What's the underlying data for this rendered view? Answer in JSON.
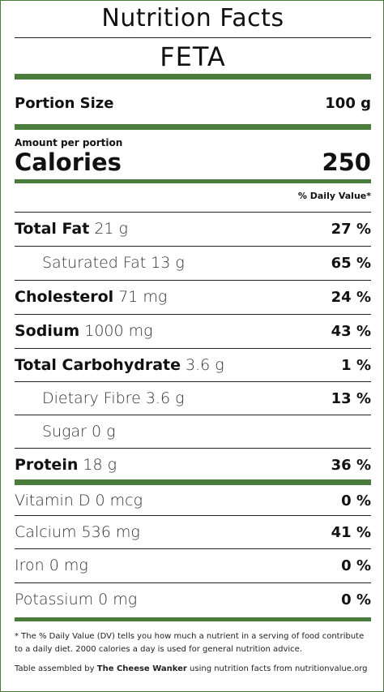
{
  "title": "Nutrition Facts",
  "food_name": "FETA",
  "portion": {
    "label": "Portion Size",
    "value": "100 g"
  },
  "amount_per_portion": "Amount per portion",
  "calories": {
    "label": "Calories",
    "value": "250"
  },
  "daily_value_header": "% Daily Value*",
  "nutrients": [
    {
      "name": "Total Fat",
      "amount": "21 g",
      "dv": "27 %"
    },
    {
      "name": "Saturated Fat",
      "amount": "13 g",
      "dv": "65 %"
    },
    {
      "name": "Cholesterol",
      "amount": "71 mg",
      "dv": "24 %"
    },
    {
      "name": "Sodium",
      "amount": "1000 mg",
      "dv": "43 %"
    },
    {
      "name": "Total Carbohydrate",
      "amount": "3.6 g",
      "dv": "1 %"
    },
    {
      "name": "Dietary Fibre",
      "amount": "3.6 g",
      "dv": "13 %"
    },
    {
      "name": "Sugar",
      "amount": "0 g",
      "dv": ""
    },
    {
      "name": "Protein",
      "amount": "18 g",
      "dv": "36 %"
    }
  ],
  "vitamins": [
    {
      "name": "Vitamin D",
      "amount": "0 mcg",
      "dv": "0 %"
    },
    {
      "name": "Calcium",
      "amount": "536 mg",
      "dv": "41 %"
    },
    {
      "name": "Iron",
      "amount": "0 mg",
      "dv": "0 %"
    },
    {
      "name": "Potassium",
      "amount": "0 mg",
      "dv": "0 %"
    }
  ],
  "footnote": "* The % Daily Value (DV) tells you how much a nutrient in a serving of food contribute to a daily diet. 2000 calories a day is used for general nutrition advice.",
  "credit": {
    "prefix": "Table assembled by",
    "author": "The Cheese Wanker",
    "suffix": "using nutrition facts from nutritionvalue.org"
  },
  "colors": {
    "accent": "#4a7d3c",
    "rule": "#222222"
  }
}
